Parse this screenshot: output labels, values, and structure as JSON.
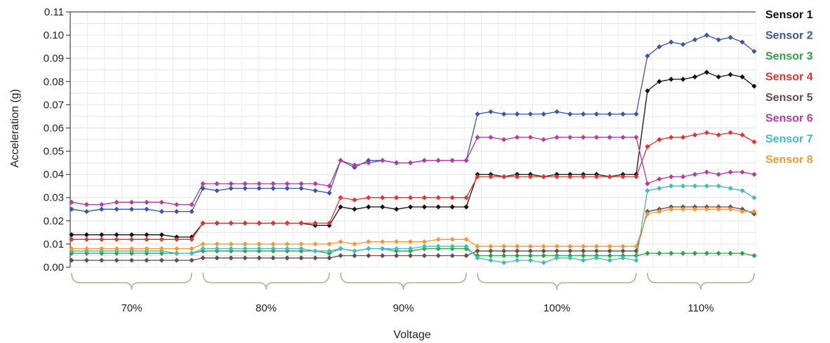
{
  "chart_data": {
    "type": "line",
    "title": "",
    "xlabel": "Voltage",
    "ylabel": "Acceleration (g)",
    "ylim": [
      0,
      0.11
    ],
    "yticks": [
      "0.00",
      "0.01",
      "0.02",
      "0.03",
      "0.04",
      "0.05",
      "0.06",
      "0.07",
      "0.08",
      "0.09",
      "0.10",
      "0.11"
    ],
    "grid": true,
    "legend_position": "right",
    "groups": [
      {
        "label": "70%",
        "points": 9
      },
      {
        "label": "80%",
        "points": 10
      },
      {
        "label": "90%",
        "points": 10
      },
      {
        "label": "100%",
        "points": 13
      },
      {
        "label": "110%",
        "points": 10
      }
    ],
    "series": [
      {
        "name": "Sensor 1",
        "color": "#111111",
        "values": [
          0.014,
          0.014,
          0.014,
          0.014,
          0.014,
          0.014,
          0.014,
          0.013,
          0.013,
          0.019,
          0.019,
          0.019,
          0.019,
          0.019,
          0.019,
          0.019,
          0.019,
          0.018,
          0.018,
          0.026,
          0.025,
          0.026,
          0.026,
          0.025,
          0.026,
          0.026,
          0.026,
          0.026,
          0.026,
          0.04,
          0.04,
          0.039,
          0.04,
          0.04,
          0.039,
          0.04,
          0.04,
          0.04,
          0.04,
          0.039,
          0.04,
          0.04,
          0.076,
          0.08,
          0.081,
          0.081,
          0.082,
          0.084,
          0.082,
          0.083,
          0.082,
          0.078
        ]
      },
      {
        "name": "Sensor 2",
        "color": "#3955a8",
        "values": [
          0.025,
          0.024,
          0.025,
          0.025,
          0.025,
          0.025,
          0.024,
          0.024,
          0.024,
          0.034,
          0.033,
          0.034,
          0.034,
          0.034,
          0.034,
          0.034,
          0.034,
          0.033,
          0.032,
          0.046,
          0.043,
          0.046,
          0.046,
          0.045,
          0.045,
          0.046,
          0.046,
          0.046,
          0.046,
          0.066,
          0.067,
          0.066,
          0.066,
          0.066,
          0.066,
          0.067,
          0.066,
          0.066,
          0.066,
          0.066,
          0.066,
          0.066,
          0.091,
          0.095,
          0.097,
          0.096,
          0.098,
          0.1,
          0.098,
          0.099,
          0.097,
          0.093
        ]
      },
      {
        "name": "Sensor 3",
        "color": "#2aa244",
        "values": [
          0.006,
          0.006,
          0.006,
          0.006,
          0.006,
          0.006,
          0.006,
          0.006,
          0.006,
          0.007,
          0.007,
          0.007,
          0.007,
          0.007,
          0.007,
          0.007,
          0.007,
          0.007,
          0.006,
          0.008,
          0.007,
          0.008,
          0.008,
          0.007,
          0.007,
          0.008,
          0.008,
          0.008,
          0.008,
          0.005,
          0.005,
          0.005,
          0.005,
          0.005,
          0.005,
          0.005,
          0.005,
          0.005,
          0.005,
          0.005,
          0.005,
          0.005,
          0.006,
          0.006,
          0.006,
          0.006,
          0.006,
          0.006,
          0.006,
          0.006,
          0.006,
          0.005
        ]
      },
      {
        "name": "Sensor 4",
        "color": "#e8312a",
        "values": [
          0.012,
          0.012,
          0.012,
          0.012,
          0.012,
          0.012,
          0.012,
          0.012,
          0.012,
          0.019,
          0.019,
          0.019,
          0.019,
          0.019,
          0.019,
          0.019,
          0.019,
          0.019,
          0.019,
          0.03,
          0.029,
          0.03,
          0.03,
          0.03,
          0.03,
          0.03,
          0.03,
          0.03,
          0.03,
          0.039,
          0.039,
          0.039,
          0.039,
          0.039,
          0.039,
          0.039,
          0.039,
          0.039,
          0.039,
          0.039,
          0.039,
          0.039,
          0.052,
          0.055,
          0.056,
          0.056,
          0.057,
          0.058,
          0.057,
          0.058,
          0.057,
          0.054
        ]
      },
      {
        "name": "Sensor 5",
        "color": "#6b4a4a",
        "values": [
          0.003,
          0.003,
          0.003,
          0.003,
          0.003,
          0.003,
          0.003,
          0.003,
          0.003,
          0.004,
          0.004,
          0.004,
          0.004,
          0.004,
          0.004,
          0.004,
          0.004,
          0.004,
          0.004,
          0.005,
          0.005,
          0.005,
          0.005,
          0.005,
          0.005,
          0.005,
          0.005,
          0.005,
          0.005,
          0.007,
          0.007,
          0.007,
          0.007,
          0.007,
          0.007,
          0.007,
          0.007,
          0.007,
          0.007,
          0.007,
          0.007,
          0.007,
          0.024,
          0.025,
          0.026,
          0.026,
          0.026,
          0.026,
          0.026,
          0.026,
          0.025,
          0.023
        ]
      },
      {
        "name": "Sensor 6",
        "color": "#b43aa4",
        "values": [
          0.028,
          0.027,
          0.027,
          0.028,
          0.028,
          0.028,
          0.028,
          0.027,
          0.027,
          0.036,
          0.036,
          0.036,
          0.036,
          0.036,
          0.036,
          0.036,
          0.036,
          0.036,
          0.035,
          0.046,
          0.044,
          0.045,
          0.046,
          0.045,
          0.045,
          0.046,
          0.046,
          0.046,
          0.046,
          0.056,
          0.056,
          0.055,
          0.056,
          0.056,
          0.055,
          0.056,
          0.056,
          0.056,
          0.056,
          0.056,
          0.056,
          0.056,
          0.036,
          0.038,
          0.039,
          0.039,
          0.04,
          0.041,
          0.04,
          0.041,
          0.041,
          0.04
        ]
      },
      {
        "name": "Sensor 7",
        "color": "#3fbdbd",
        "values": [
          0.007,
          0.007,
          0.007,
          0.007,
          0.007,
          0.007,
          0.007,
          0.006,
          0.006,
          0.008,
          0.008,
          0.008,
          0.008,
          0.008,
          0.008,
          0.008,
          0.008,
          0.007,
          0.007,
          0.008,
          0.007,
          0.008,
          0.008,
          0.008,
          0.008,
          0.009,
          0.009,
          0.009,
          0.009,
          0.004,
          0.003,
          0.002,
          0.003,
          0.003,
          0.002,
          0.004,
          0.004,
          0.003,
          0.004,
          0.003,
          0.004,
          0.003,
          0.033,
          0.034,
          0.035,
          0.035,
          0.035,
          0.035,
          0.035,
          0.034,
          0.033,
          0.03
        ]
      },
      {
        "name": "Sensor 8",
        "color": "#f39a2e",
        "values": [
          0.008,
          0.008,
          0.008,
          0.008,
          0.008,
          0.008,
          0.008,
          0.008,
          0.008,
          0.01,
          0.01,
          0.01,
          0.01,
          0.01,
          0.01,
          0.01,
          0.01,
          0.01,
          0.01,
          0.011,
          0.01,
          0.011,
          0.011,
          0.011,
          0.011,
          0.011,
          0.012,
          0.012,
          0.012,
          0.009,
          0.009,
          0.009,
          0.009,
          0.009,
          0.009,
          0.009,
          0.009,
          0.009,
          0.009,
          0.009,
          0.009,
          0.009,
          0.023,
          0.024,
          0.025,
          0.025,
          0.025,
          0.025,
          0.025,
          0.025,
          0.024,
          0.024
        ]
      }
    ]
  }
}
